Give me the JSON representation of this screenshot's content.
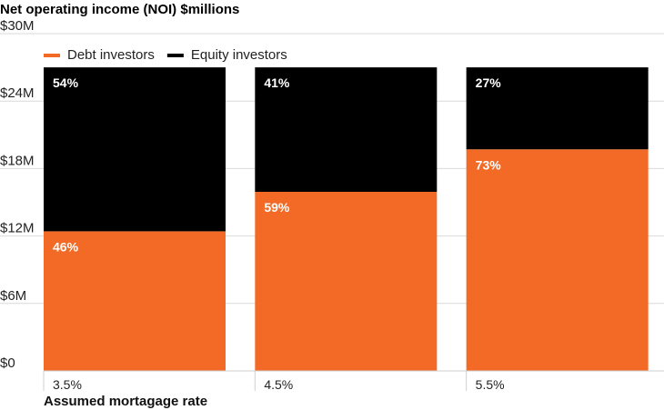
{
  "chart_data": {
    "type": "bar",
    "stacked": true,
    "title": "Net operating income (NOI) $millions",
    "xlabel": "Assumed mortagage rate",
    "ylabel": "",
    "categories": [
      "3.5%",
      "4.5%",
      "5.5%"
    ],
    "ylim": [
      0,
      30
    ],
    "yticks": [
      "$0",
      "$6M",
      "$12M",
      "$18M",
      "$24M",
      "$30M"
    ],
    "ytick_values": [
      0,
      6,
      12,
      18,
      24,
      30
    ],
    "total": 27,
    "series": [
      {
        "name": "Debt investors",
        "color": "#f26a25",
        "values": [
          12.42,
          15.93,
          19.71
        ],
        "labels": [
          "46%",
          "59%",
          "73%"
        ]
      },
      {
        "name": "Equity investors",
        "color": "#000000",
        "values": [
          14.58,
          11.07,
          7.29
        ],
        "labels": [
          "54%",
          "41%",
          "27%"
        ]
      }
    ],
    "grid": true,
    "legend_position": "top-left"
  }
}
